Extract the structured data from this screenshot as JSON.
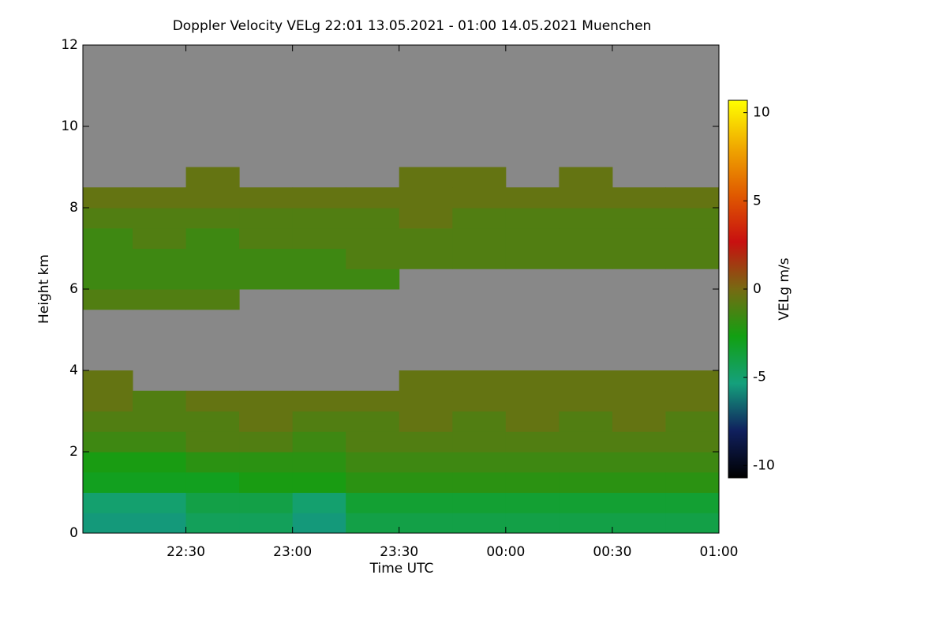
{
  "chart_data": {
    "type": "heatmap",
    "title": "Doppler Velocity VELg   22:01 13.05.2021 - 01:00 14.05.2021 Muenchen",
    "xlabel": "Time UTC",
    "ylabel": "Height km",
    "colorbar_label": "VELg m/s",
    "x": [
      22.125,
      22.375,
      22.625,
      22.875,
      23.125,
      23.375,
      23.625,
      23.875,
      24.125,
      24.375,
      24.625,
      24.875
    ],
    "y": [
      0.25,
      0.75,
      1.25,
      1.75,
      2.25,
      2.75,
      3.25,
      3.75,
      4.25,
      4.75,
      5.25,
      5.75,
      6.25,
      6.75,
      7.25,
      7.75,
      8.25,
      8.75,
      9.25,
      9.75,
      10.25,
      10.75,
      11.25,
      11.75
    ],
    "values": [
      [
        -5.5,
        -5.5,
        -4.5,
        -4.5,
        -5.5,
        -4,
        -4,
        -4,
        -4,
        -4,
        -4,
        -4
      ],
      [
        -5,
        -5,
        -4,
        -4,
        -5,
        -3.5,
        -3.5,
        -3.5,
        -3.5,
        -3.5,
        -3.5,
        -3.5
      ],
      [
        -3,
        -3,
        -3,
        -2.5,
        -2.5,
        -2,
        -2,
        -2,
        -2,
        -2,
        -2,
        -2
      ],
      [
        -2.5,
        -2.5,
        -2,
        -2,
        -2,
        -1.5,
        -1.5,
        -1.5,
        -1.5,
        -1.5,
        -1.5,
        -1.5
      ],
      [
        -1.5,
        -1.5,
        -1,
        -1,
        -1.5,
        -1,
        -1,
        -1,
        -1,
        -1,
        -1,
        -1
      ],
      [
        -1,
        -1,
        -1,
        -0.5,
        -1,
        -1,
        -0.5,
        -1,
        -0.5,
        -1,
        -0.5,
        -1
      ],
      [
        -0.5,
        -1,
        -0.5,
        -0.5,
        -0.5,
        -0.5,
        -0.5,
        -0.5,
        -0.5,
        -0.5,
        -0.5,
        -0.5
      ],
      [
        -0.5,
        null,
        null,
        null,
        null,
        null,
        -0.5,
        -0.5,
        -0.5,
        -0.5,
        -0.5,
        -0.5
      ],
      [
        null,
        null,
        null,
        null,
        null,
        null,
        null,
        null,
        null,
        null,
        null,
        null
      ],
      [
        null,
        null,
        null,
        null,
        null,
        null,
        null,
        null,
        null,
        null,
        null,
        null
      ],
      [
        null,
        null,
        null,
        null,
        null,
        null,
        null,
        null,
        null,
        null,
        null,
        null
      ],
      [
        -1,
        -1,
        -1,
        null,
        null,
        null,
        null,
        null,
        null,
        null,
        null,
        null
      ],
      [
        -1.5,
        -1.5,
        -1.5,
        -1.5,
        -1.5,
        -1.5,
        null,
        null,
        null,
        null,
        null,
        null
      ],
      [
        -1.5,
        -1.5,
        -1.5,
        -1.5,
        -1.5,
        -1,
        -1,
        -1,
        -1,
        -1,
        -1,
        -1
      ],
      [
        -1.5,
        -1,
        -1.5,
        -1,
        -1,
        -1,
        -1,
        -1,
        -1,
        -1,
        -1,
        -1
      ],
      [
        -1,
        -1,
        -1,
        -1,
        -1,
        -1,
        -0.5,
        -1,
        -1,
        -1,
        -1,
        -1
      ],
      [
        -0.5,
        -0.5,
        -0.5,
        -0.5,
        -0.5,
        -0.5,
        -0.5,
        -0.5,
        -0.5,
        -0.5,
        -0.5,
        -0.5
      ],
      [
        null,
        null,
        -0.5,
        null,
        null,
        null,
        -0.5,
        -0.5,
        null,
        -0.5,
        null,
        null
      ],
      [
        null,
        null,
        null,
        null,
        null,
        null,
        null,
        null,
        null,
        null,
        null,
        null
      ],
      [
        null,
        null,
        null,
        null,
        null,
        null,
        null,
        null,
        null,
        null,
        null,
        null
      ],
      [
        null,
        null,
        null,
        null,
        null,
        null,
        null,
        null,
        null,
        null,
        null,
        null
      ],
      [
        null,
        null,
        null,
        null,
        null,
        null,
        null,
        null,
        null,
        null,
        null,
        null
      ],
      [
        null,
        null,
        null,
        null,
        null,
        null,
        null,
        null,
        null,
        null,
        null,
        null
      ],
      [
        null,
        null,
        null,
        null,
        null,
        null,
        null,
        null,
        null,
        null,
        null,
        null
      ]
    ],
    "xlim": [
      22.0167,
      25
    ],
    "xticks": [
      {
        "value": 22.5,
        "label": "22:30"
      },
      {
        "value": 23,
        "label": "23:00"
      },
      {
        "value": 23.5,
        "label": "23:30"
      },
      {
        "value": 24,
        "label": "00:00"
      },
      {
        "value": 24.5,
        "label": "00:30"
      },
      {
        "value": 25,
        "label": "01:00"
      }
    ],
    "ylim": [
      0,
      12
    ],
    "yticks": [
      0,
      2,
      4,
      6,
      8,
      10,
      12
    ],
    "zlim": [
      -10.7,
      10.7
    ],
    "zticks": [
      -10,
      -5,
      0,
      5,
      10
    ],
    "colorscale": [
      "#000000",
      "#10205e",
      "#14a07c",
      "#12a012",
      "#776a12",
      "#c81010",
      "#e05a00",
      "#f0a800",
      "#ffff00"
    ],
    "missing_color": "#888888"
  }
}
